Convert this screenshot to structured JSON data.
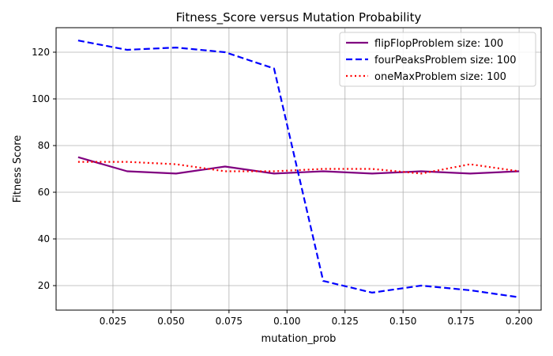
{
  "chart_data": {
    "type": "line",
    "title": "Fitness_Score versus Mutation Probability",
    "xlabel": "mutation_prob",
    "ylabel": "Fitness Score",
    "xlim": [
      0.0005,
      0.2095
    ],
    "ylim": [
      9.5,
      130.5
    ],
    "xticks": [
      0.025,
      0.05,
      0.075,
      0.1,
      0.125,
      0.15,
      0.175,
      0.2
    ],
    "xtick_labels": [
      "0.025",
      "0.050",
      "0.075",
      "0.100",
      "0.125",
      "0.150",
      "0.175",
      "0.200"
    ],
    "yticks": [
      20,
      40,
      60,
      80,
      100,
      120
    ],
    "ytick_labels": [
      "20",
      "40",
      "60",
      "80",
      "100",
      "120"
    ],
    "grid": true,
    "legend_position": "top-right",
    "x": [
      0.01,
      0.0311,
      0.0522,
      0.0733,
      0.0944,
      0.1156,
      0.1367,
      0.1578,
      0.1789,
      0.2
    ],
    "series": [
      {
        "name": "flipFlopProblem size: 100",
        "color": "#800080",
        "style": "solid",
        "values": [
          75,
          69,
          68,
          71,
          68,
          69,
          68,
          69,
          68,
          69
        ]
      },
      {
        "name": "fourPeaksProblem size: 100",
        "color": "#0000ff",
        "style": "dashed",
        "values": [
          125,
          121,
          122,
          120,
          113,
          22,
          17,
          20,
          18,
          15
        ]
      },
      {
        "name": "oneMaxProblem size: 100",
        "color": "#ff0000",
        "style": "dotted",
        "values": [
          73,
          73,
          72,
          69,
          69,
          70,
          70,
          68,
          72,
          69
        ]
      }
    ]
  }
}
